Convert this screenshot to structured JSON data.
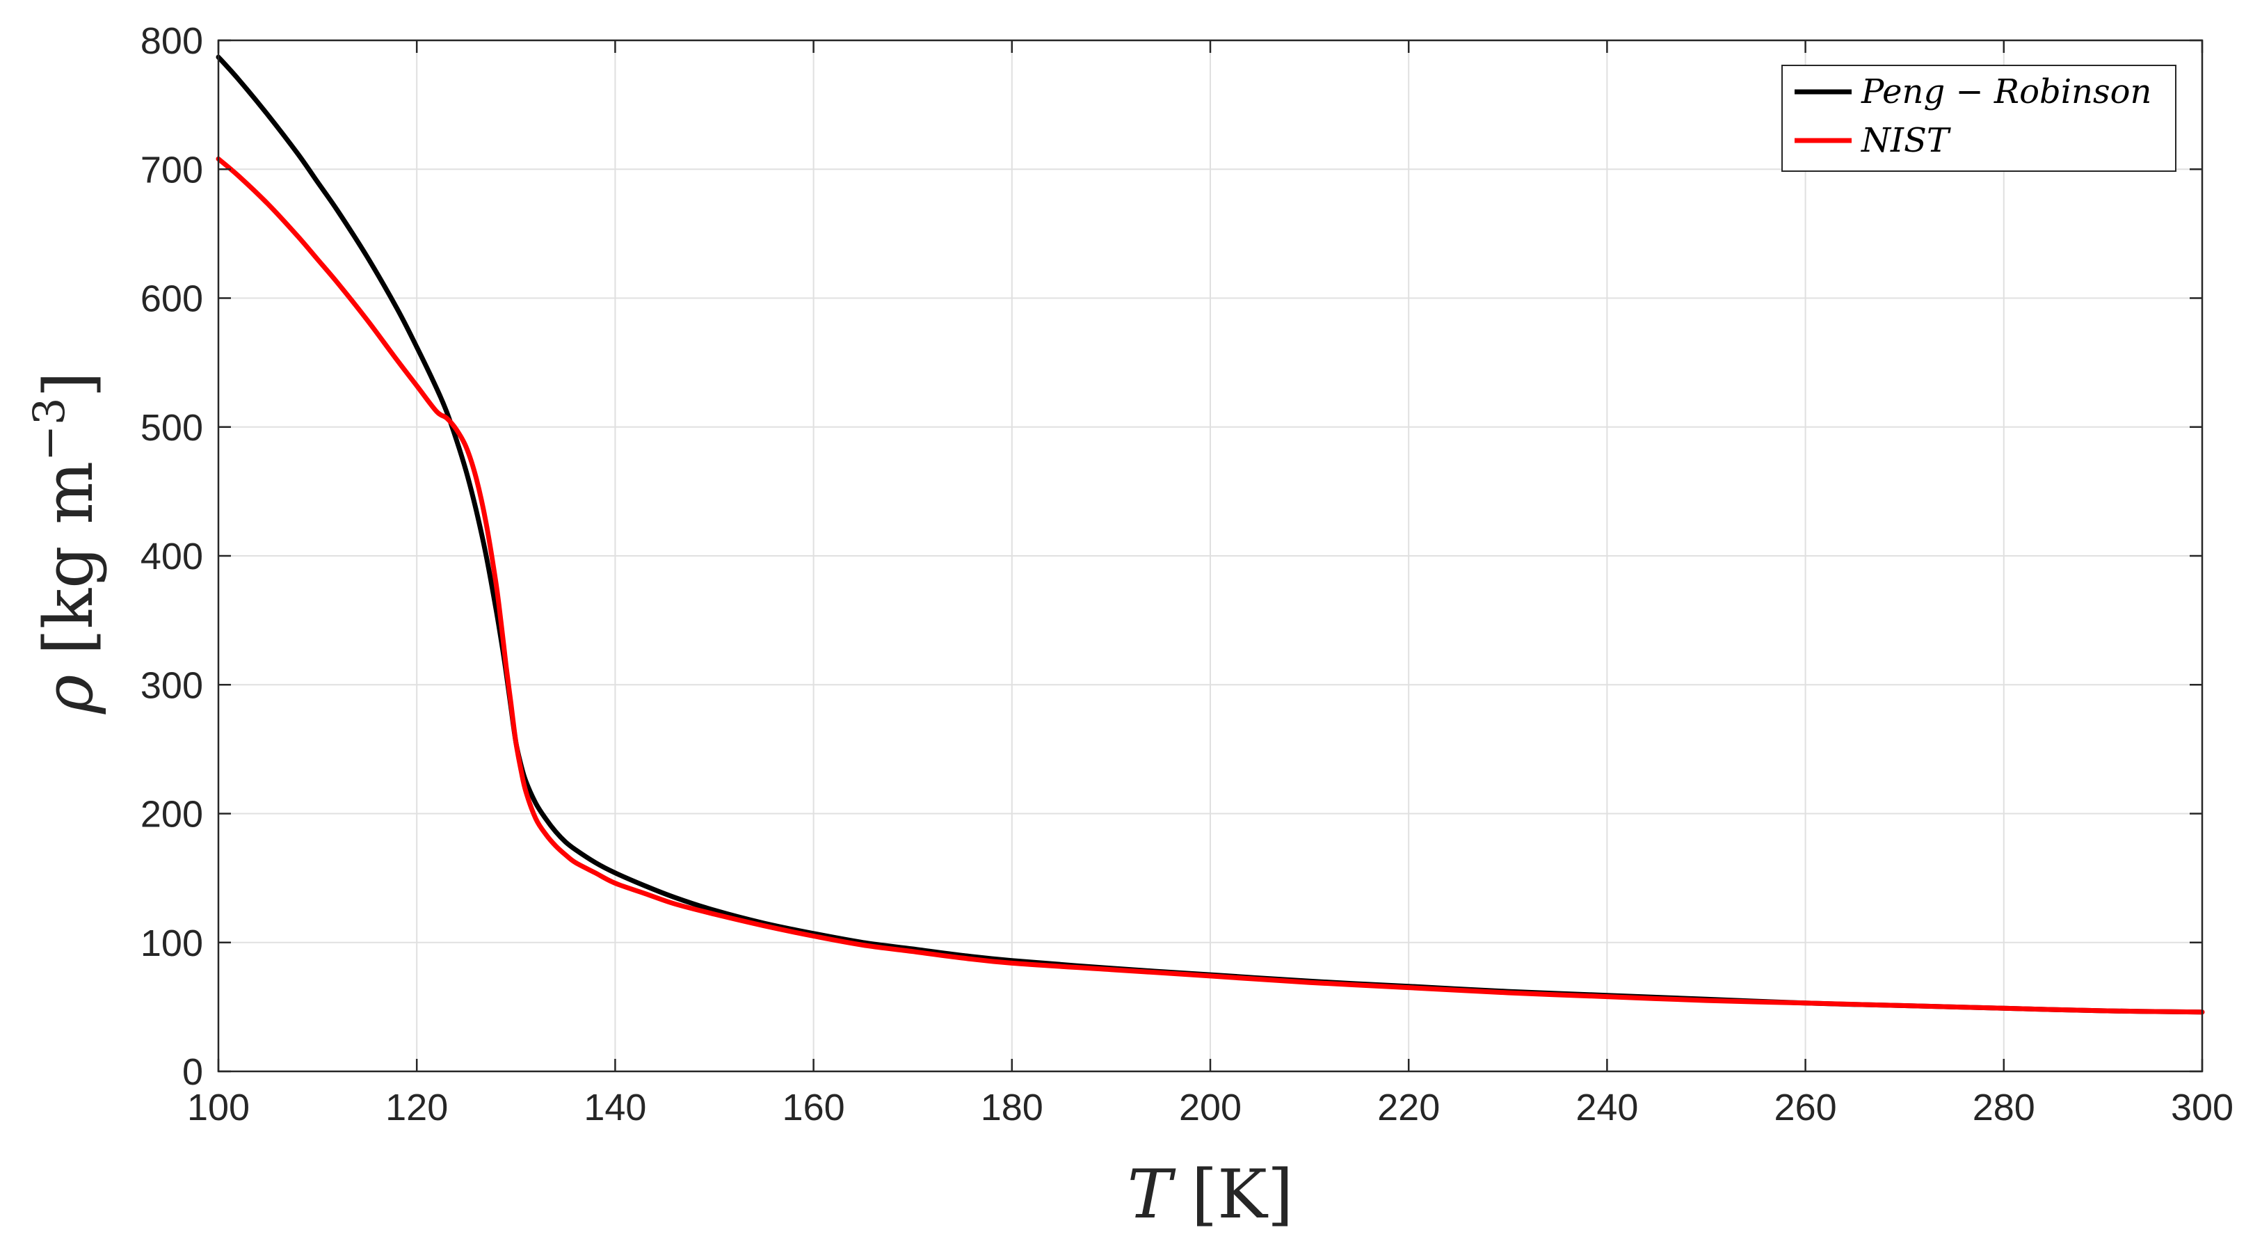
{
  "chart_data": {
    "type": "line",
    "title": "",
    "xlabel_symbol": "T",
    "xlabel_unit": "[K]",
    "ylabel_symbol": "ρ",
    "ylabel_unit_main": "[kg m",
    "ylabel_unit_exp": "−3",
    "ylabel_unit_close": "]",
    "xlim": [
      100,
      300
    ],
    "ylim": [
      0,
      800
    ],
    "x_ticks": [
      100,
      120,
      140,
      160,
      180,
      200,
      220,
      240,
      260,
      280,
      300
    ],
    "y_ticks": [
      0,
      100,
      200,
      300,
      400,
      500,
      600,
      700,
      800
    ],
    "grid": true,
    "legend_position": "top-right",
    "series": [
      {
        "name": "Peng − Robinson",
        "color": "#000000",
        "x": [
          100,
          102,
          105,
          108,
          110,
          112,
          115,
          118,
          120,
          122,
          123,
          124,
          125,
          126,
          127,
          128,
          128.5,
          129,
          129.5,
          130,
          130.5,
          131,
          132,
          133,
          134,
          135,
          136,
          138,
          140,
          143,
          146,
          150,
          155,
          160,
          165,
          170,
          175,
          180,
          190,
          200,
          210,
          220,
          230,
          240,
          250,
          260,
          270,
          280,
          290,
          300
        ],
        "y": [
          787,
          770,
          742,
          712,
          690,
          668,
          632,
          592,
          562,
          530,
          512,
          490,
          465,
          435,
          400,
          358,
          335,
          310,
          282,
          255,
          238,
          225,
          208,
          196,
          186,
          178,
          172,
          162,
          154,
          144,
          135,
          125,
          115,
          107,
          100,
          95,
          90,
          86,
          80,
          75,
          70,
          66,
          62,
          59,
          56,
          53,
          51,
          49,
          47,
          46
        ]
      },
      {
        "name": "NIST",
        "color": "#ff0000",
        "x": [
          100,
          102,
          105,
          108,
          110,
          112,
          115,
          118,
          120,
          122,
          123,
          124,
          125,
          126,
          127,
          128,
          128.5,
          129,
          129.5,
          130,
          130.5,
          131,
          132,
          133,
          134,
          135,
          136,
          138,
          140,
          143,
          146,
          150,
          155,
          160,
          165,
          170,
          175,
          180,
          190,
          200,
          210,
          220,
          230,
          240,
          250,
          260,
          270,
          280,
          290,
          300
        ],
        "y": [
          708,
          695,
          673,
          648,
          630,
          612,
          583,
          552,
          532,
          512,
          507,
          498,
          484,
          460,
          425,
          378,
          348,
          315,
          285,
          255,
          234,
          217,
          196,
          184,
          175,
          168,
          162,
          154,
          146,
          138,
          130,
          122,
          113,
          105,
          98,
          93,
          88,
          84,
          79,
          74,
          69,
          65,
          61,
          58,
          55,
          53,
          51,
          49,
          47,
          46
        ]
      }
    ]
  }
}
